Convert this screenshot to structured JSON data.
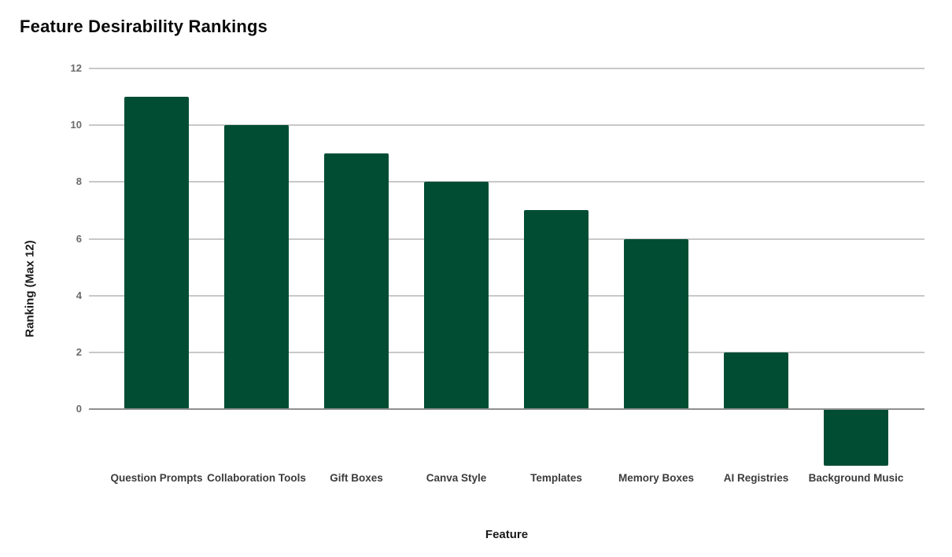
{
  "page": {
    "background": "#ffffff"
  },
  "colors": {
    "background": "#ffffff",
    "bar": "#004d33",
    "gridline": "#c8c8c8",
    "axis_line": "#8f8f8f",
    "title": "#0a0a0a",
    "tick_label": "#6b6b6b",
    "category_label": "#3c3c3c",
    "axis_title": "#1a1a1a"
  },
  "chart_data": {
    "type": "bar",
    "title": "Feature Desirability Rankings",
    "xlabel": "Feature",
    "ylabel": "Ranking (Max 12)",
    "categories": [
      "Question Prompts",
      "Collaboration Tools",
      "Gift Boxes",
      "Canva Style",
      "Templates",
      "Memory Boxes",
      "AI Registries",
      "Background Music"
    ],
    "values": [
      11,
      10,
      9,
      8,
      7,
      6,
      2,
      -2
    ],
    "yticks": [
      0,
      2,
      4,
      6,
      8,
      10,
      12
    ],
    "ylim": [
      -2.5,
      12
    ],
    "grid": true,
    "legend": "none",
    "bar_color": "#004d33"
  }
}
